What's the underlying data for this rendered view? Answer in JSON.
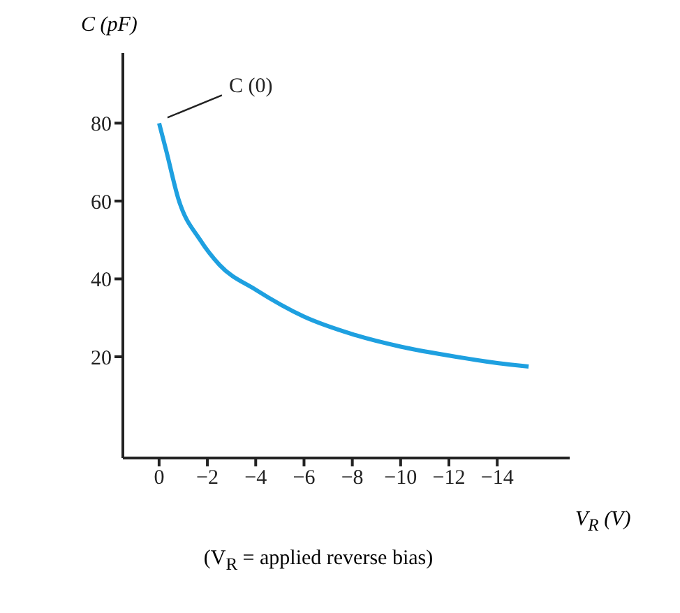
{
  "chart_data": {
    "type": "line",
    "ylabel": "C (pF)",
    "xlabel": "V$_{R}$ (V)",
    "annotations": [
      {
        "text": "C (0)",
        "x": 0,
        "y": 80
      },
      "(V$_{R}$ = applied reverse bias)"
    ],
    "x": [
      0,
      -0.3,
      -0.8,
      -1.7,
      -2.5,
      -4,
      -6,
      -8,
      -10,
      -12,
      -14,
      -15.3
    ],
    "series": [
      {
        "color": "#1ea0e0",
        "values": [
          80,
          72.8,
          60.5,
          50,
          43.6,
          37.2,
          30.3,
          25.8,
          22.6,
          20.3,
          18.4,
          17.5
        ]
      }
    ],
    "xlim": [
      1.5,
      -17
    ],
    "ylim": [
      -6,
      98
    ],
    "xticks": [
      0,
      -2,
      -4,
      -6,
      -8,
      -10,
      -12,
      -14
    ],
    "yticks": [
      20,
      40,
      60,
      80
    ],
    "grid": false,
    "marker": "none",
    "line_style": "solid"
  }
}
